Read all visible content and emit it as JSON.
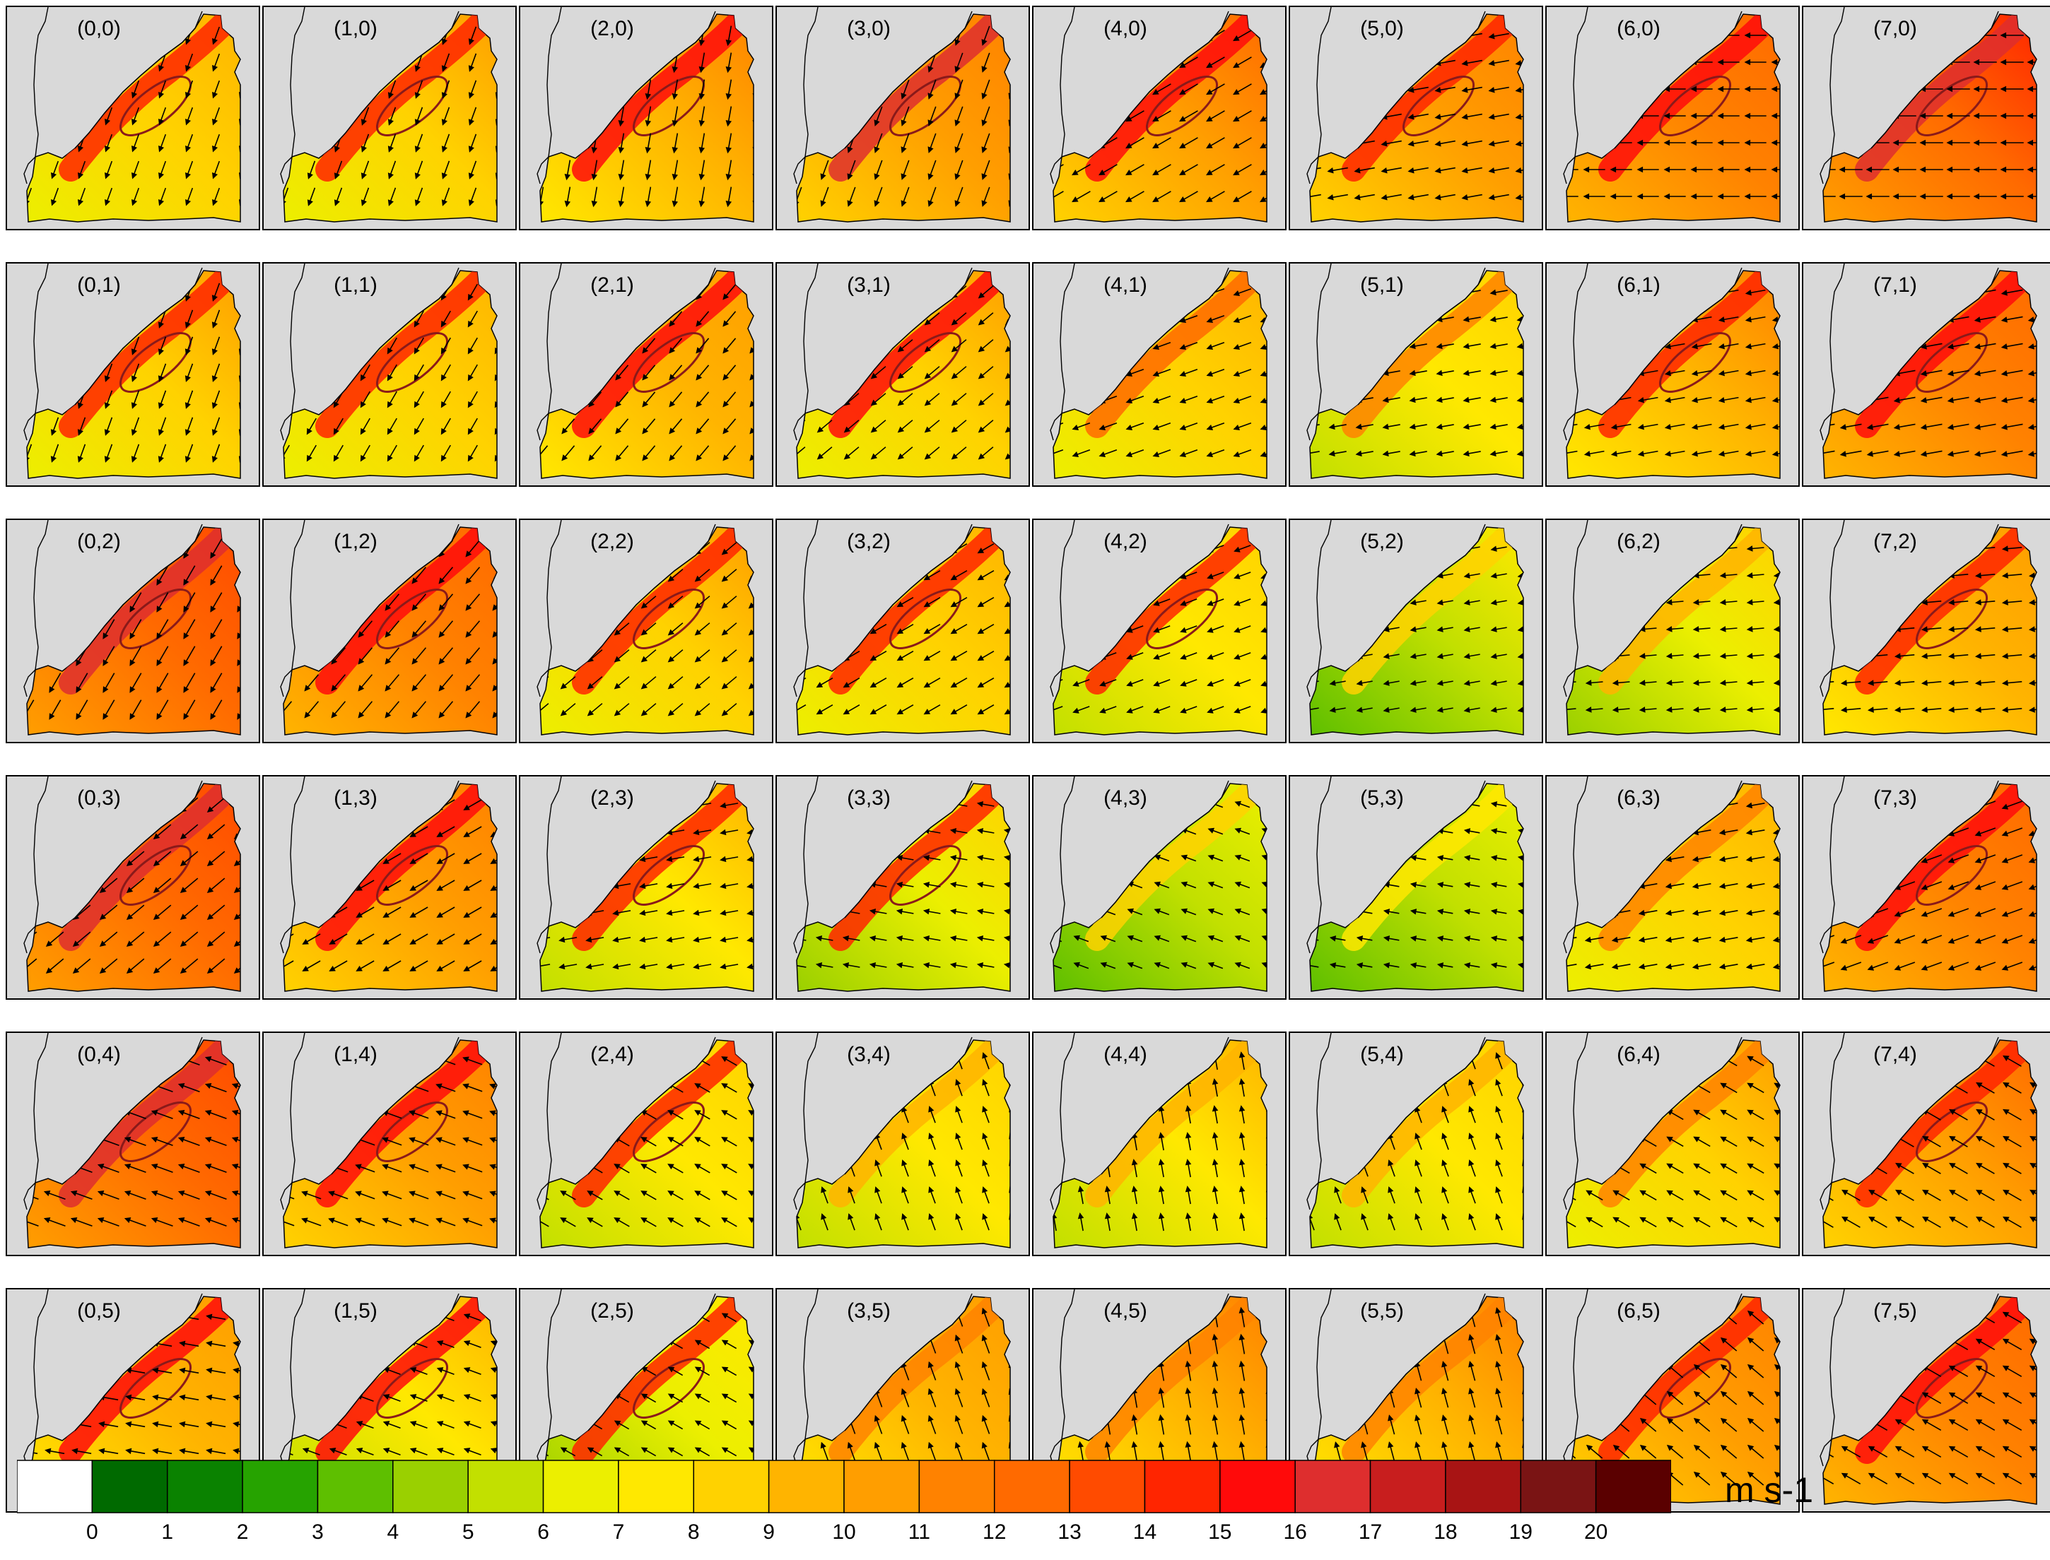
{
  "chart_data": {
    "type": "panel-grid",
    "grid": {
      "cols": 8,
      "rows": 6
    },
    "panels": [
      {
        "label": "(0,0)",
        "mean": 8.0,
        "max": 15.5,
        "dir": 200
      },
      {
        "label": "(1,0)",
        "mean": 8.5,
        "max": 15,
        "dir": 200
      },
      {
        "label": "(2,0)",
        "mean": 9.5,
        "max": 16,
        "dir": 190
      },
      {
        "label": "(3,0)",
        "mean": 10,
        "max": 17,
        "dir": 200
      },
      {
        "label": "(4,0)",
        "mean": 10.5,
        "max": 16,
        "dir": 240
      },
      {
        "label": "(5,0)",
        "mean": 10,
        "max": 15,
        "dir": 260
      },
      {
        "label": "(6,0)",
        "mean": 11,
        "max": 16,
        "dir": 270
      },
      {
        "label": "(7,0)",
        "mean": 12.5,
        "max": 17,
        "dir": 270
      },
      {
        "label": "(0,1)",
        "mean": 8.5,
        "max": 15,
        "dir": 200
      },
      {
        "label": "(1,1)",
        "mean": 8,
        "max": 15,
        "dir": 210
      },
      {
        "label": "(2,1)",
        "mean": 9,
        "max": 16,
        "dir": 220
      },
      {
        "label": "(3,1)",
        "mean": 8.5,
        "max": 16,
        "dir": 230
      },
      {
        "label": "(4,1)",
        "mean": 8,
        "max": 13,
        "dir": 250
      },
      {
        "label": "(5,1)",
        "mean": 7,
        "max": 12,
        "dir": 260
      },
      {
        "label": "(6,1)",
        "mean": 9.5,
        "max": 15,
        "dir": 260
      },
      {
        "label": "(7,1)",
        "mean": 11,
        "max": 16,
        "dir": 260
      },
      {
        "label": "(0,2)",
        "mean": 12,
        "max": 17,
        "dir": 210
      },
      {
        "label": "(1,2)",
        "mean": 11,
        "max": 16,
        "dir": 220
      },
      {
        "label": "(2,2)",
        "mean": 8.5,
        "max": 15,
        "dir": 230
      },
      {
        "label": "(3,2)",
        "mean": 8,
        "max": 15,
        "dir": 240
      },
      {
        "label": "(4,2)",
        "mean": 7,
        "max": 15,
        "dir": 250
      },
      {
        "label": "(5,2)",
        "mean": 5.5,
        "max": 9,
        "dir": 260
      },
      {
        "label": "(6,2)",
        "mean": 6.5,
        "max": 10,
        "dir": 265
      },
      {
        "label": "(7,2)",
        "mean": 9,
        "max": 15,
        "dir": 265
      },
      {
        "label": "(0,3)",
        "mean": 12,
        "max": 17,
        "dir": 230
      },
      {
        "label": "(1,3)",
        "mean": 10,
        "max": 16,
        "dir": 240
      },
      {
        "label": "(2,3)",
        "mean": 7.5,
        "max": 15,
        "dir": 260
      },
      {
        "label": "(3,3)",
        "mean": 6.5,
        "max": 15,
        "dir": 280
      },
      {
        "label": "(4,3)",
        "mean": 5,
        "max": 9,
        "dir": 290
      },
      {
        "label": "(5,3)",
        "mean": 5,
        "max": 8,
        "dir": 280
      },
      {
        "label": "(6,3)",
        "mean": 8,
        "max": 12,
        "dir": 260
      },
      {
        "label": "(7,3)",
        "mean": 11,
        "max": 16,
        "dir": 250
      },
      {
        "label": "(0,4)",
        "mean": 12,
        "max": 17,
        "dir": 290
      },
      {
        "label": "(1,4)",
        "mean": 10,
        "max": 16,
        "dir": 290
      },
      {
        "label": "(2,4)",
        "mean": 7,
        "max": 15,
        "dir": 300
      },
      {
        "label": "(3,4)",
        "mean": 7,
        "max": 10,
        "dir": 340
      },
      {
        "label": "(4,4)",
        "mean": 7.5,
        "max": 10,
        "dir": 350
      },
      {
        "label": "(5,4)",
        "mean": 7,
        "max": 10,
        "dir": 340
      },
      {
        "label": "(6,4)",
        "mean": 8.5,
        "max": 12,
        "dir": 300
      },
      {
        "label": "(7,4)",
        "mean": 10.5,
        "max": 15,
        "dir": 300
      },
      {
        "label": "(0,5)",
        "mean": 9,
        "max": 16,
        "dir": 280
      },
      {
        "label": "(1,5)",
        "mean": 7.5,
        "max": 16,
        "dir": 290
      },
      {
        "label": "(2,5)",
        "mean": 6,
        "max": 15,
        "dir": 300
      },
      {
        "label": "(3,5)",
        "mean": 9,
        "max": 12,
        "dir": 340
      },
      {
        "label": "(4,5)",
        "mean": 9.5,
        "max": 12,
        "dir": 350
      },
      {
        "label": "(5,5)",
        "mean": 9.5,
        "max": 12,
        "dir": 345
      },
      {
        "label": "(6,5)",
        "mean": 10,
        "max": 15,
        "dir": 310
      },
      {
        "label": "(7,5)",
        "mean": 11,
        "max": 16,
        "dir": 300
      }
    ],
    "colorbar": {
      "levels": [
        0,
        1,
        2,
        3,
        4,
        5,
        6,
        7,
        8,
        9,
        10,
        11,
        12,
        13,
        14,
        15,
        16,
        17,
        18,
        19,
        20
      ],
      "colors": [
        "#ffffff",
        "#006a00",
        "#0a8200",
        "#26a300",
        "#5ebf00",
        "#9ad000",
        "#c2e000",
        "#ecef00",
        "#ffe800",
        "#ffd200",
        "#ffb400",
        "#ff9e00",
        "#ff8200",
        "#ff6a00",
        "#ff4b00",
        "#ff2500",
        "#ff0a0a",
        "#de2e2e",
        "#c81e1e",
        "#a81414",
        "#7a1414",
        "#5a0000"
      ],
      "unit": "m s-1"
    },
    "frame_bg": "#d9d9d9",
    "contour_level": 15,
    "contour_color": "#8a1a1a"
  }
}
